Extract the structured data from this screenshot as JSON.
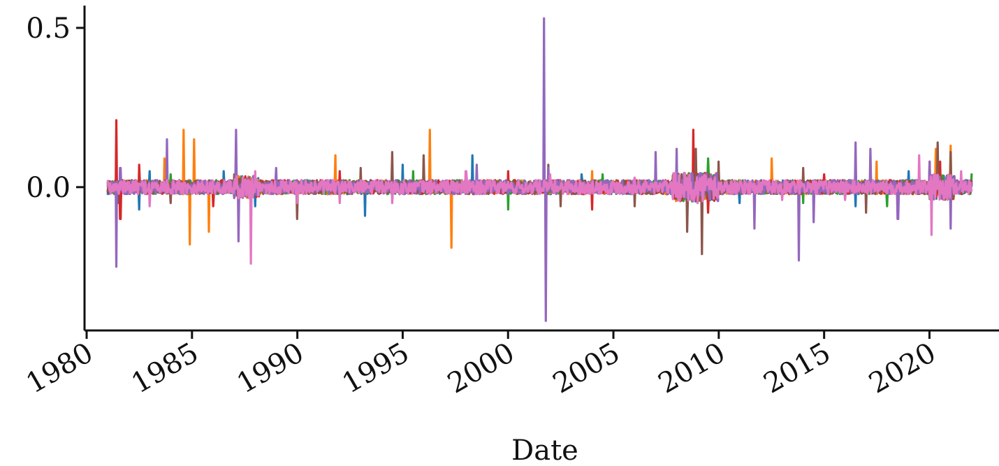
{
  "chart_data": {
    "type": "line",
    "title": "",
    "xlabel": "Date",
    "ylabel": "",
    "x_ticks": [
      "1980",
      "1985",
      "1990",
      "1995",
      "2000",
      "2005",
      "2010",
      "2015",
      "2020"
    ],
    "y_ticks": [
      "0.0",
      "0.5"
    ],
    "xlim": [
      1979.9,
      2023.3
    ],
    "ylim": [
      -0.45,
      0.57
    ],
    "grid": false,
    "legend": "none",
    "series": [
      {
        "color": "#1f77b4",
        "points": [
          [
            1981.0,
            0.0
          ],
          [
            1981.5,
            -0.05
          ],
          [
            1982.5,
            -0.07
          ],
          [
            1983.0,
            0.05
          ],
          [
            1986.5,
            0.05
          ],
          [
            1988.0,
            -0.06
          ],
          [
            1993.2,
            -0.09
          ],
          [
            1995.0,
            0.07
          ],
          [
            1998.3,
            0.1
          ],
          [
            2003.5,
            0.04
          ],
          [
            2008.0,
            0.05
          ],
          [
            2011.0,
            -0.05
          ],
          [
            2016.5,
            -0.06
          ],
          [
            2019.0,
            0.05
          ],
          [
            2022.0,
            0.0
          ]
        ]
      },
      {
        "color": "#ff7f0e",
        "points": [
          [
            1981.0,
            0.0
          ],
          [
            1983.7,
            0.09
          ],
          [
            1984.6,
            0.18
          ],
          [
            1984.9,
            -0.18
          ],
          [
            1985.1,
            0.15
          ],
          [
            1985.8,
            -0.14
          ],
          [
            1991.8,
            0.1
          ],
          [
            1996.3,
            0.18
          ],
          [
            1997.3,
            -0.19
          ],
          [
            2004.0,
            0.05
          ],
          [
            2010.0,
            0.06
          ],
          [
            2012.5,
            0.09
          ],
          [
            2017.5,
            0.08
          ],
          [
            2020.3,
            0.12
          ],
          [
            2021.0,
            0.13
          ],
          [
            2022.0,
            0.0
          ]
        ]
      },
      {
        "color": "#2ca02c",
        "points": [
          [
            1981.0,
            0.0
          ],
          [
            1984.0,
            0.04
          ],
          [
            1990.0,
            -0.04
          ],
          [
            1995.5,
            0.05
          ],
          [
            2000.0,
            -0.07
          ],
          [
            2004.5,
            0.04
          ],
          [
            2009.5,
            0.09
          ],
          [
            2014.0,
            -0.05
          ],
          [
            2018.0,
            -0.06
          ],
          [
            2022.0,
            0.04
          ]
        ]
      },
      {
        "color": "#d62728",
        "points": [
          [
            1981.0,
            0.0
          ],
          [
            1981.4,
            0.21
          ],
          [
            1981.6,
            -0.1
          ],
          [
            1982.5,
            0.07
          ],
          [
            1986.0,
            -0.06
          ],
          [
            1992.0,
            0.05
          ],
          [
            2000.0,
            0.05
          ],
          [
            2004.0,
            -0.07
          ],
          [
            2008.8,
            0.18
          ],
          [
            2009.5,
            -0.08
          ],
          [
            2015.0,
            0.04
          ],
          [
            2020.5,
            0.08
          ],
          [
            2022.0,
            0.0
          ]
        ]
      },
      {
        "color": "#8c564b",
        "points": [
          [
            1981.0,
            0.0
          ],
          [
            1984.0,
            -0.05
          ],
          [
            1987.0,
            0.04
          ],
          [
            1990.0,
            -0.1
          ],
          [
            1993.0,
            0.06
          ],
          [
            1994.5,
            0.11
          ],
          [
            1996.0,
            0.1
          ],
          [
            2001.9,
            0.07
          ],
          [
            2002.5,
            -0.06
          ],
          [
            2006.0,
            -0.06
          ],
          [
            2008.5,
            -0.14
          ],
          [
            2008.9,
            0.12
          ],
          [
            2009.2,
            -0.21
          ],
          [
            2010.0,
            0.08
          ],
          [
            2014.0,
            0.06
          ],
          [
            2017.0,
            -0.08
          ],
          [
            2020.0,
            0.08
          ],
          [
            2020.4,
            0.14
          ],
          [
            2021.0,
            0.11
          ],
          [
            2022.0,
            0.0
          ]
        ]
      },
      {
        "color": "#9467bd",
        "points": [
          [
            1981.0,
            0.0
          ],
          [
            1981.4,
            -0.25
          ],
          [
            1981.6,
            0.06
          ],
          [
            1983.8,
            0.15
          ],
          [
            1987.1,
            0.18
          ],
          [
            1987.2,
            -0.17
          ],
          [
            1989.0,
            0.06
          ],
          [
            1998.5,
            0.07
          ],
          [
            2001.7,
            0.53
          ],
          [
            2001.8,
            -0.42
          ],
          [
            2001.9,
            0.06
          ],
          [
            2007.0,
            0.11
          ],
          [
            2008.0,
            0.12
          ],
          [
            2011.7,
            -0.13
          ],
          [
            2013.8,
            -0.23
          ],
          [
            2014.5,
            -0.11
          ],
          [
            2016.5,
            0.14
          ],
          [
            2017.2,
            0.12
          ],
          [
            2018.5,
            -0.1
          ],
          [
            2020.0,
            0.08
          ],
          [
            2021.0,
            -0.13
          ],
          [
            2022.0,
            0.0
          ]
        ]
      },
      {
        "color": "#e377c2",
        "points": [
          [
            1981.0,
            0.0
          ],
          [
            1983.0,
            -0.06
          ],
          [
            1987.8,
            -0.24
          ],
          [
            1988.0,
            0.05
          ],
          [
            1990.0,
            -0.05
          ],
          [
            1992.0,
            -0.05
          ],
          [
            1994.5,
            -0.05
          ],
          [
            1998.0,
            0.05
          ],
          [
            2002.0,
            0.04
          ],
          [
            2006.0,
            0.03
          ],
          [
            2009.0,
            -0.05
          ],
          [
            2013.0,
            -0.04
          ],
          [
            2016.0,
            -0.04
          ],
          [
            2019.5,
            0.1
          ],
          [
            2020.1,
            -0.15
          ],
          [
            2021.5,
            0.05
          ],
          [
            2022.0,
            0.0
          ]
        ]
      }
    ]
  }
}
